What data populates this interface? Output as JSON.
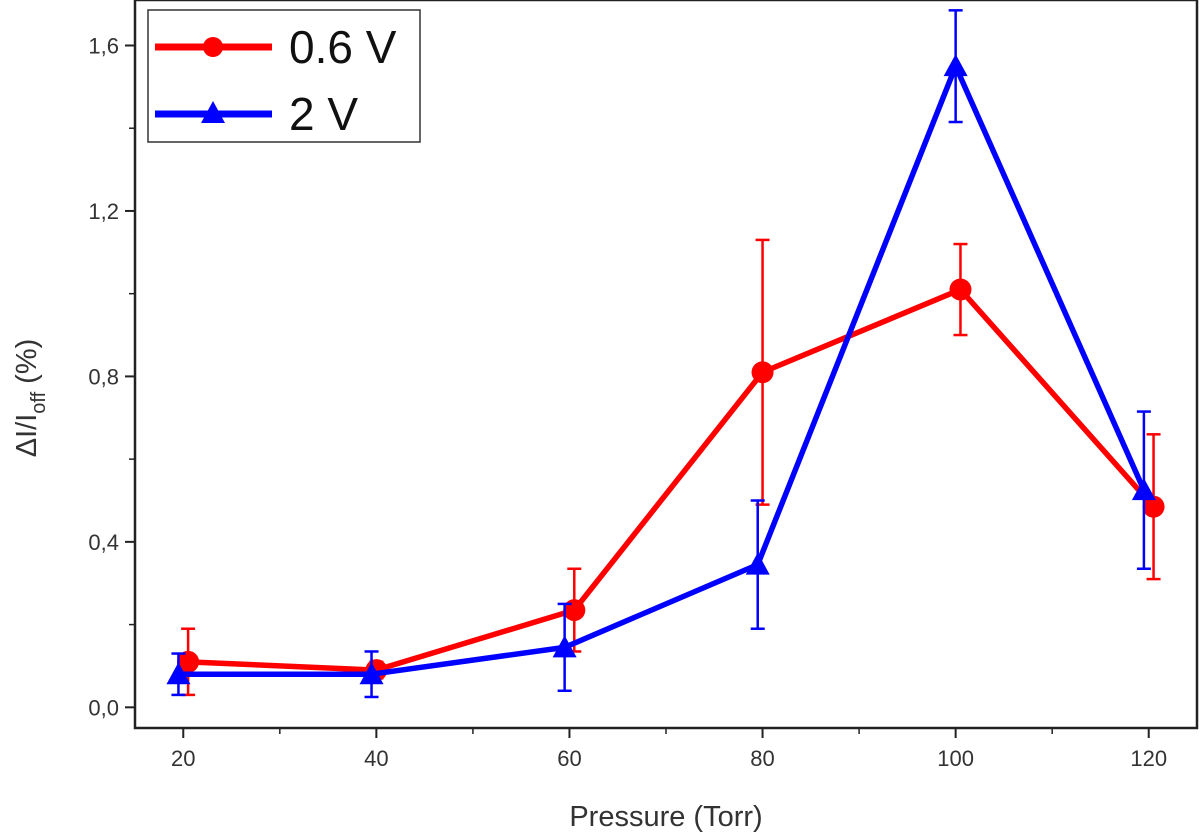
{
  "chart_data": {
    "type": "line",
    "title": "",
    "xlabel": "Pressure (Torr)",
    "ylabel": {
      "main": "ΔI/I",
      "sub": "off",
      "suffix": " (%)"
    },
    "xlim": [
      15,
      125
    ],
    "ylim": [
      -0.05,
      1.71
    ],
    "xticks": [
      {
        "value": 20,
        "label": "20"
      },
      {
        "value": 40,
        "label": "40"
      },
      {
        "value": 60,
        "label": "60"
      },
      {
        "value": 80,
        "label": "80"
      },
      {
        "value": 100,
        "label": "100"
      },
      {
        "value": 120,
        "label": "120"
      }
    ],
    "yticks": [
      {
        "value": 0.0,
        "label": "0,0"
      },
      {
        "value": 0.4,
        "label": "0,4"
      },
      {
        "value": 0.8,
        "label": "0,8"
      },
      {
        "value": 1.2,
        "label": "1,2"
      },
      {
        "value": 1.6,
        "label": "1,6"
      }
    ],
    "legend_position": "top-left",
    "series": [
      {
        "name": "0.6 V",
        "color": "#ff0000",
        "marker": "circle",
        "x": [
          20.5,
          40,
          60.5,
          80,
          100.5,
          120.5
        ],
        "y": [
          0.11,
          0.09,
          0.235,
          0.81,
          1.01,
          0.485
        ],
        "err": [
          0.08,
          0.02,
          0.1,
          0.32,
          0.11,
          0.175
        ]
      },
      {
        "name": "2 V",
        "color": "#0000ff",
        "marker": "triangle",
        "x": [
          19.5,
          39.5,
          59.5,
          79.5,
          100,
          119.5
        ],
        "y": [
          0.08,
          0.08,
          0.145,
          0.345,
          1.55,
          0.525
        ],
        "err": [
          0.05,
          0.055,
          0.105,
          0.155,
          0.135,
          0.19
        ]
      }
    ]
  }
}
